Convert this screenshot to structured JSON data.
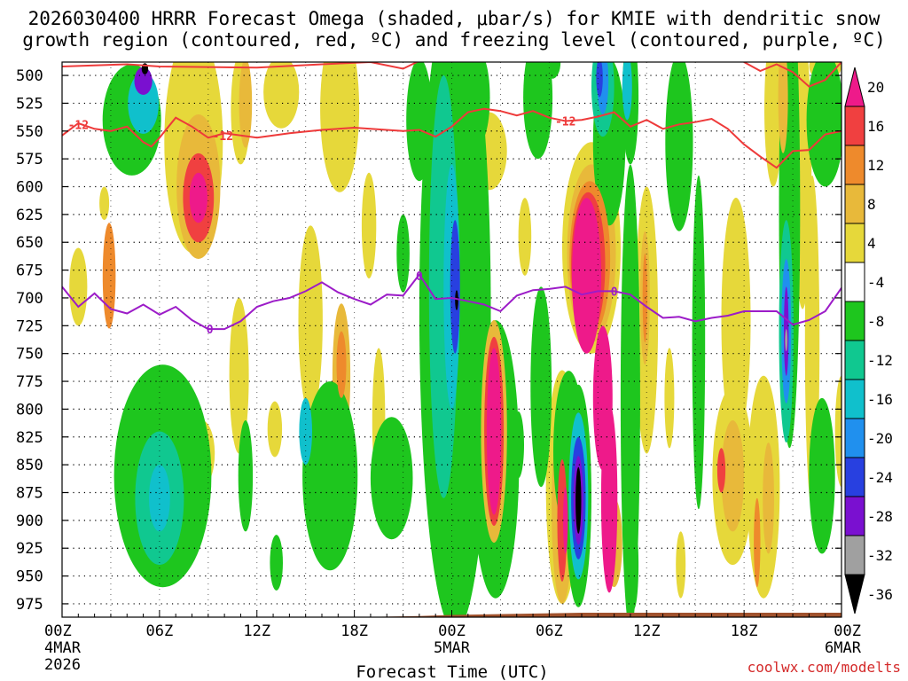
{
  "chart_data": {
    "type": "heatmap",
    "title_line1": "2026030400 HRRR Forecast Omega (shaded, μbar/s) for KMIE with dendritic snow",
    "title_line2": "growth region (contoured, red, ºC) and freezing level (contoured, purple, ºC)",
    "xlabel": "Forecast Time (UTC)",
    "credit": "coolwx.com/modelts",
    "x_range_hours": [
      0,
      48
    ],
    "x_ticks": [
      {
        "hour": 0,
        "line1": "00Z",
        "line2": "4MAR",
        "line3": "2026"
      },
      {
        "hour": 6,
        "line1": "06Z"
      },
      {
        "hour": 12,
        "line1": "12Z"
      },
      {
        "hour": 18,
        "line1": "18Z"
      },
      {
        "hour": 24,
        "line1": "00Z",
        "line2": "5MAR"
      },
      {
        "hour": 30,
        "line1": "06Z"
      },
      {
        "hour": 36,
        "line1": "12Z"
      },
      {
        "hour": 42,
        "line1": "18Z"
      },
      {
        "hour": 48,
        "line1": "00Z",
        "line2": "6MAR"
      }
    ],
    "y_range_mb": [
      987,
      488
    ],
    "y_ticks": [
      "500",
      "525",
      "550",
      "575",
      "600",
      "625",
      "650",
      "675",
      "700",
      "725",
      "750",
      "775",
      "800",
      "825",
      "850",
      "875",
      "900",
      "925",
      "950",
      "975"
    ],
    "colorbar": {
      "labels": [
        "20",
        "16",
        "12",
        "8",
        "4",
        "-4",
        "-8",
        "-12",
        "-16",
        "-20",
        "-24",
        "-28",
        "-32",
        "-36"
      ],
      "colors": [
        "#ee1a8a",
        "#f04040",
        "#ee8a2c",
        "#e8b93a",
        "#e6d83a",
        "#ffffff",
        "#1ec61e",
        "#10c890",
        "#10c0cc",
        "#2090ee",
        "#2840e0",
        "#7a10d0",
        "#a0a0a0",
        "#000000"
      ]
    },
    "surface_color": "#a0522d",
    "dendritic_minus12_contour": {
      "label": "-12",
      "color": "#ee3a3a",
      "points": [
        [
          0,
          554
        ],
        [
          1,
          543
        ],
        [
          2,
          548
        ],
        [
          3,
          550
        ],
        [
          4,
          546
        ],
        [
          5,
          560
        ],
        [
          5.5,
          564
        ],
        [
          6,
          556
        ],
        [
          7,
          538
        ],
        [
          8,
          546
        ],
        [
          9,
          556
        ],
        [
          10,
          552
        ],
        [
          12,
          556
        ],
        [
          14,
          552
        ],
        [
          16,
          549
        ],
        [
          18,
          547
        ],
        [
          20,
          549
        ],
        [
          21,
          550
        ],
        [
          22,
          549
        ],
        [
          23,
          555
        ],
        [
          24,
          546
        ],
        [
          25,
          533
        ],
        [
          26,
          530
        ],
        [
          27,
          532
        ],
        [
          28,
          536
        ],
        [
          29,
          532
        ],
        [
          30,
          538
        ],
        [
          31,
          541
        ],
        [
          32,
          540
        ],
        [
          33,
          537
        ],
        [
          34,
          533
        ],
        [
          35,
          546
        ],
        [
          36,
          540
        ],
        [
          37,
          548
        ],
        [
          38,
          544
        ],
        [
          39,
          542
        ],
        [
          40,
          539
        ],
        [
          41,
          548
        ],
        [
          42,
          562
        ],
        [
          43,
          573
        ],
        [
          44,
          583
        ],
        [
          45,
          568
        ],
        [
          46,
          567
        ],
        [
          47,
          553
        ],
        [
          48,
          550
        ]
      ]
    },
    "dendritic_upper_contour": {
      "color": "#ee3a3a",
      "points": [
        [
          0,
          492
        ],
        [
          4,
          490
        ],
        [
          6,
          492
        ],
        [
          12,
          493
        ],
        [
          16,
          490
        ],
        [
          19,
          488
        ],
        [
          21,
          494
        ],
        [
          22,
          487
        ]
      ]
    },
    "dendritic_upper_contour_right": {
      "color": "#ee3a3a",
      "points": [
        [
          42,
          488
        ],
        [
          43,
          496
        ],
        [
          44,
          490
        ],
        [
          45,
          497
        ],
        [
          46,
          510
        ],
        [
          47,
          504
        ],
        [
          48,
          488
        ]
      ]
    },
    "freezing_level_contour": {
      "label": "0",
      "color": "#9c1cc8",
      "points": [
        [
          0,
          690
        ],
        [
          1,
          708
        ],
        [
          2,
          696
        ],
        [
          3,
          710
        ],
        [
          4,
          714
        ],
        [
          5,
          706
        ],
        [
          6,
          715
        ],
        [
          7,
          708
        ],
        [
          8,
          720
        ],
        [
          9,
          728
        ],
        [
          10,
          728
        ],
        [
          11,
          721
        ],
        [
          12,
          708
        ],
        [
          13,
          703
        ],
        [
          14,
          700
        ],
        [
          15,
          694
        ],
        [
          16,
          686
        ],
        [
          17,
          695
        ],
        [
          18,
          701
        ],
        [
          19,
          706
        ],
        [
          20,
          697
        ],
        [
          21,
          698
        ],
        [
          22,
          679
        ],
        [
          23,
          701
        ],
        [
          24,
          700
        ],
        [
          25,
          703
        ],
        [
          26,
          706
        ],
        [
          27,
          712
        ],
        [
          28,
          698
        ],
        [
          29,
          693
        ],
        [
          30,
          692
        ],
        [
          31,
          690
        ],
        [
          32,
          697
        ],
        [
          33,
          694
        ],
        [
          34,
          694
        ],
        [
          35,
          697
        ],
        [
          36,
          708
        ],
        [
          37,
          718
        ],
        [
          38,
          717
        ],
        [
          39,
          721
        ],
        [
          40,
          718
        ],
        [
          41,
          716
        ],
        [
          42,
          712
        ],
        [
          43,
          712
        ],
        [
          44,
          712
        ],
        [
          45,
          724
        ],
        [
          46,
          720
        ],
        [
          47,
          712
        ],
        [
          48,
          691
        ]
      ]
    },
    "omega_features": [
      {
        "cx": 1.0,
        "cy": 690,
        "w": 1.1,
        "h": 70,
        "level": 4
      },
      {
        "cx": 2.9,
        "cy": 680,
        "w": 0.8,
        "h": 95,
        "level": 12
      },
      {
        "cx": 2.6,
        "cy": 615,
        "w": 0.6,
        "h": 30,
        "level": 4
      },
      {
        "cx": 4.3,
        "cy": 540,
        "w": 3.6,
        "h": 100,
        "level": -8
      },
      {
        "cx": 5.0,
        "cy": 525,
        "w": 1.9,
        "h": 55,
        "level": -16
      },
      {
        "cx": 5.0,
        "cy": 505,
        "w": 1.1,
        "h": 25,
        "level": -28
      },
      {
        "cx": 5.1,
        "cy": 494,
        "w": 0.4,
        "h": 10,
        "level": -36
      },
      {
        "cx": 8.1,
        "cy": 560,
        "w": 3.6,
        "h": 200,
        "level": 4
      },
      {
        "cx": 8.4,
        "cy": 600,
        "w": 2.7,
        "h": 130,
        "level": 8
      },
      {
        "cx": 8.4,
        "cy": 610,
        "w": 1.9,
        "h": 80,
        "level": 16
      },
      {
        "cx": 8.4,
        "cy": 610,
        "w": 1.1,
        "h": 45,
        "level": 20
      },
      {
        "cx": 11.0,
        "cy": 530,
        "w": 1.2,
        "h": 100,
        "level": 4
      },
      {
        "cx": 11.3,
        "cy": 525,
        "w": 0.8,
        "h": 80,
        "level": 8
      },
      {
        "cx": 10.9,
        "cy": 770,
        "w": 1.2,
        "h": 140,
        "level": 4
      },
      {
        "cx": 6.2,
        "cy": 860,
        "w": 6.0,
        "h": 200,
        "level": -8
      },
      {
        "cx": 6.0,
        "cy": 880,
        "w": 3.0,
        "h": 120,
        "level": -12
      },
      {
        "cx": 6.0,
        "cy": 880,
        "w": 1.3,
        "h": 60,
        "level": -16
      },
      {
        "cx": 8.6,
        "cy": 840,
        "w": 1.6,
        "h": 60,
        "level": 4
      },
      {
        "cx": 11.3,
        "cy": 860,
        "w": 0.9,
        "h": 100,
        "level": -8
      },
      {
        "cx": 13.5,
        "cy": 515,
        "w": 2.2,
        "h": 65,
        "level": 4
      },
      {
        "cx": 13.1,
        "cy": 818,
        "w": 0.9,
        "h": 50,
        "level": 4
      },
      {
        "cx": 13.2,
        "cy": 938,
        "w": 0.8,
        "h": 50,
        "level": -8
      },
      {
        "cx": 15.3,
        "cy": 720,
        "w": 1.5,
        "h": 170,
        "level": 4
      },
      {
        "cx": 17.1,
        "cy": 530,
        "w": 2.4,
        "h": 150,
        "level": 4
      },
      {
        "cx": 17.2,
        "cy": 770,
        "w": 1.1,
        "h": 130,
        "level": 8
      },
      {
        "cx": 17.2,
        "cy": 760,
        "w": 0.6,
        "h": 60,
        "level": 12
      },
      {
        "cx": 16.5,
        "cy": 860,
        "w": 3.4,
        "h": 170,
        "level": -8
      },
      {
        "cx": 15.0,
        "cy": 820,
        "w": 0.8,
        "h": 60,
        "level": -16
      },
      {
        "cx": 18.9,
        "cy": 635,
        "w": 0.9,
        "h": 95,
        "level": 4
      },
      {
        "cx": 19.5,
        "cy": 810,
        "w": 0.8,
        "h": 130,
        "level": 4
      },
      {
        "cx": 20.3,
        "cy": 862,
        "w": 2.6,
        "h": 110,
        "level": -8
      },
      {
        "cx": 21.0,
        "cy": 660,
        "w": 0.8,
        "h": 70,
        "level": -8
      },
      {
        "cx": 22.0,
        "cy": 540,
        "w": 1.6,
        "h": 110,
        "level": -8
      },
      {
        "cx": 22.6,
        "cy": 720,
        "w": 1.2,
        "h": 80,
        "level": 4
      },
      {
        "cx": 24.2,
        "cy": 710,
        "w": 4.4,
        "h": 580,
        "level": -8
      },
      {
        "cx": 23.5,
        "cy": 690,
        "w": 1.8,
        "h": 380,
        "level": -12
      },
      {
        "cx": 24.0,
        "cy": 690,
        "w": 1.0,
        "h": 220,
        "level": -16
      },
      {
        "cx": 24.2,
        "cy": 690,
        "w": 0.6,
        "h": 120,
        "level": -24
      },
      {
        "cx": 24.3,
        "cy": 702,
        "w": 0.2,
        "h": 18,
        "level": -36
      },
      {
        "cx": 25.7,
        "cy": 520,
        "w": 1.3,
        "h": 80,
        "level": -8
      },
      {
        "cx": 26.3,
        "cy": 568,
        "w": 2.2,
        "h": 70,
        "level": 4
      },
      {
        "cx": 24.0,
        "cy": 930,
        "w": 1.0,
        "h": 60,
        "level": 4
      },
      {
        "cx": 24.1,
        "cy": 980,
        "w": 0.6,
        "h": 30,
        "level": 4
      },
      {
        "cx": 26.7,
        "cy": 845,
        "w": 2.9,
        "h": 250,
        "level": -8
      },
      {
        "cx": 26.6,
        "cy": 820,
        "w": 1.6,
        "h": 200,
        "level": 8
      },
      {
        "cx": 26.6,
        "cy": 820,
        "w": 1.2,
        "h": 170,
        "level": 16
      },
      {
        "cx": 26.6,
        "cy": 820,
        "w": 0.9,
        "h": 150,
        "level": 20
      },
      {
        "cx": 28.1,
        "cy": 832,
        "w": 0.7,
        "h": 60,
        "level": -8
      },
      {
        "cx": 28.5,
        "cy": 645,
        "w": 0.8,
        "h": 70,
        "level": 4
      },
      {
        "cx": 29.5,
        "cy": 780,
        "w": 1.3,
        "h": 180,
        "level": -8
      },
      {
        "cx": 29.3,
        "cy": 520,
        "w": 1.8,
        "h": 110,
        "level": -8
      },
      {
        "cx": 30.2,
        "cy": 488,
        "w": 1.0,
        "h": 30,
        "level": -8
      },
      {
        "cx": 30.8,
        "cy": 870,
        "w": 2.0,
        "h": 210,
        "level": 4
      },
      {
        "cx": 30.8,
        "cy": 890,
        "w": 1.3,
        "h": 170,
        "level": 8
      },
      {
        "cx": 30.8,
        "cy": 900,
        "w": 0.6,
        "h": 110,
        "level": 16
      },
      {
        "cx": 31.0,
        "cy": 900,
        "w": 0.3,
        "h": 60,
        "level": 20
      },
      {
        "cx": 32.6,
        "cy": 655,
        "w": 3.6,
        "h": 190,
        "level": 4
      },
      {
        "cx": 32.6,
        "cy": 660,
        "w": 3.0,
        "h": 160,
        "level": 8
      },
      {
        "cx": 32.5,
        "cy": 665,
        "w": 2.5,
        "h": 140,
        "level": 12
      },
      {
        "cx": 32.4,
        "cy": 670,
        "w": 2.1,
        "h": 130,
        "level": 16
      },
      {
        "cx": 32.3,
        "cy": 680,
        "w": 1.8,
        "h": 140,
        "level": 20
      },
      {
        "cx": 33.3,
        "cy": 790,
        "w": 1.2,
        "h": 130,
        "level": 20
      },
      {
        "cx": 33.7,
        "cy": 880,
        "w": 1.0,
        "h": 170,
        "level": 20
      },
      {
        "cx": 34.0,
        "cy": 920,
        "w": 1.0,
        "h": 80,
        "level": 8
      },
      {
        "cx": 31.2,
        "cy": 838,
        "w": 1.9,
        "h": 145,
        "level": -8
      },
      {
        "cx": 31.8,
        "cy": 878,
        "w": 1.6,
        "h": 200,
        "level": -8
      },
      {
        "cx": 31.8,
        "cy": 878,
        "w": 1.2,
        "h": 150,
        "level": -16
      },
      {
        "cx": 31.8,
        "cy": 880,
        "w": 0.9,
        "h": 110,
        "level": -24
      },
      {
        "cx": 31.8,
        "cy": 882,
        "w": 0.6,
        "h": 80,
        "level": -28
      },
      {
        "cx": 31.8,
        "cy": 882,
        "w": 0.35,
        "h": 60,
        "level": -36
      },
      {
        "cx": 33.7,
        "cy": 560,
        "w": 2.0,
        "h": 150,
        "level": -8
      },
      {
        "cx": 33.3,
        "cy": 510,
        "w": 1.4,
        "h": 90,
        "level": -12
      },
      {
        "cx": 33.3,
        "cy": 505,
        "w": 0.7,
        "h": 60,
        "level": -20
      },
      {
        "cx": 33.1,
        "cy": 502,
        "w": 0.4,
        "h": 35,
        "level": -24
      },
      {
        "cx": 35.0,
        "cy": 790,
        "w": 1.2,
        "h": 420,
        "level": -8
      },
      {
        "cx": 35.0,
        "cy": 520,
        "w": 1.0,
        "h": 120,
        "level": -8
      },
      {
        "cx": 34.8,
        "cy": 510,
        "w": 0.6,
        "h": 60,
        "level": -16
      },
      {
        "cx": 35.2,
        "cy": 940,
        "w": 0.6,
        "h": 80,
        "level": -8
      },
      {
        "cx": 36.0,
        "cy": 720,
        "w": 1.4,
        "h": 240,
        "level": 4
      },
      {
        "cx": 35.9,
        "cy": 700,
        "w": 0.6,
        "h": 120,
        "level": 8
      },
      {
        "cx": 35.9,
        "cy": 700,
        "w": 0.3,
        "h": 80,
        "level": 12
      },
      {
        "cx": 37.4,
        "cy": 790,
        "w": 0.6,
        "h": 90,
        "level": 4
      },
      {
        "cx": 38.0,
        "cy": 560,
        "w": 1.7,
        "h": 160,
        "level": -8
      },
      {
        "cx": 38.1,
        "cy": 940,
        "w": 0.6,
        "h": 60,
        "level": 4
      },
      {
        "cx": 39.2,
        "cy": 740,
        "w": 0.8,
        "h": 300,
        "level": -8
      },
      {
        "cx": 41.5,
        "cy": 720,
        "w": 1.8,
        "h": 220,
        "level": 4
      },
      {
        "cx": 41.3,
        "cy": 860,
        "w": 2.5,
        "h": 160,
        "level": 4
      },
      {
        "cx": 41.3,
        "cy": 860,
        "w": 1.4,
        "h": 100,
        "level": 8
      },
      {
        "cx": 40.6,
        "cy": 855,
        "w": 0.5,
        "h": 40,
        "level": 16
      },
      {
        "cx": 43.2,
        "cy": 870,
        "w": 2.0,
        "h": 200,
        "level": 4
      },
      {
        "cx": 43.5,
        "cy": 880,
        "w": 0.7,
        "h": 100,
        "level": 8
      },
      {
        "cx": 42.8,
        "cy": 920,
        "w": 0.4,
        "h": 80,
        "level": 12
      },
      {
        "cx": 44.8,
        "cy": 620,
        "w": 1.3,
        "h": 430,
        "level": -8
      },
      {
        "cx": 44.6,
        "cy": 730,
        "w": 0.9,
        "h": 200,
        "level": -12
      },
      {
        "cx": 44.6,
        "cy": 730,
        "w": 0.6,
        "h": 130,
        "level": -20
      },
      {
        "cx": 44.6,
        "cy": 730,
        "w": 0.3,
        "h": 80,
        "level": -28
      },
      {
        "cx": 44.6,
        "cy": 738,
        "w": 0.15,
        "h": 20,
        "level": -32
      },
      {
        "cx": 43.8,
        "cy": 530,
        "w": 1.1,
        "h": 140,
        "level": 4
      },
      {
        "cx": 44.4,
        "cy": 520,
        "w": 0.6,
        "h": 100,
        "level": 8
      },
      {
        "cx": 45.6,
        "cy": 585,
        "w": 1.1,
        "h": 250,
        "level": 4
      },
      {
        "cx": 46.2,
        "cy": 740,
        "w": 0.9,
        "h": 300,
        "level": 4
      },
      {
        "cx": 47.0,
        "cy": 540,
        "w": 2.3,
        "h": 120,
        "level": -8
      },
      {
        "cx": 46.8,
        "cy": 860,
        "w": 1.6,
        "h": 140,
        "level": -8
      },
      {
        "cx": 48.0,
        "cy": 820,
        "w": 0.8,
        "h": 100,
        "level": 4
      },
      {
        "cx": 47.0,
        "cy": 492,
        "w": 2.0,
        "h": 25,
        "level": 4
      }
    ]
  }
}
